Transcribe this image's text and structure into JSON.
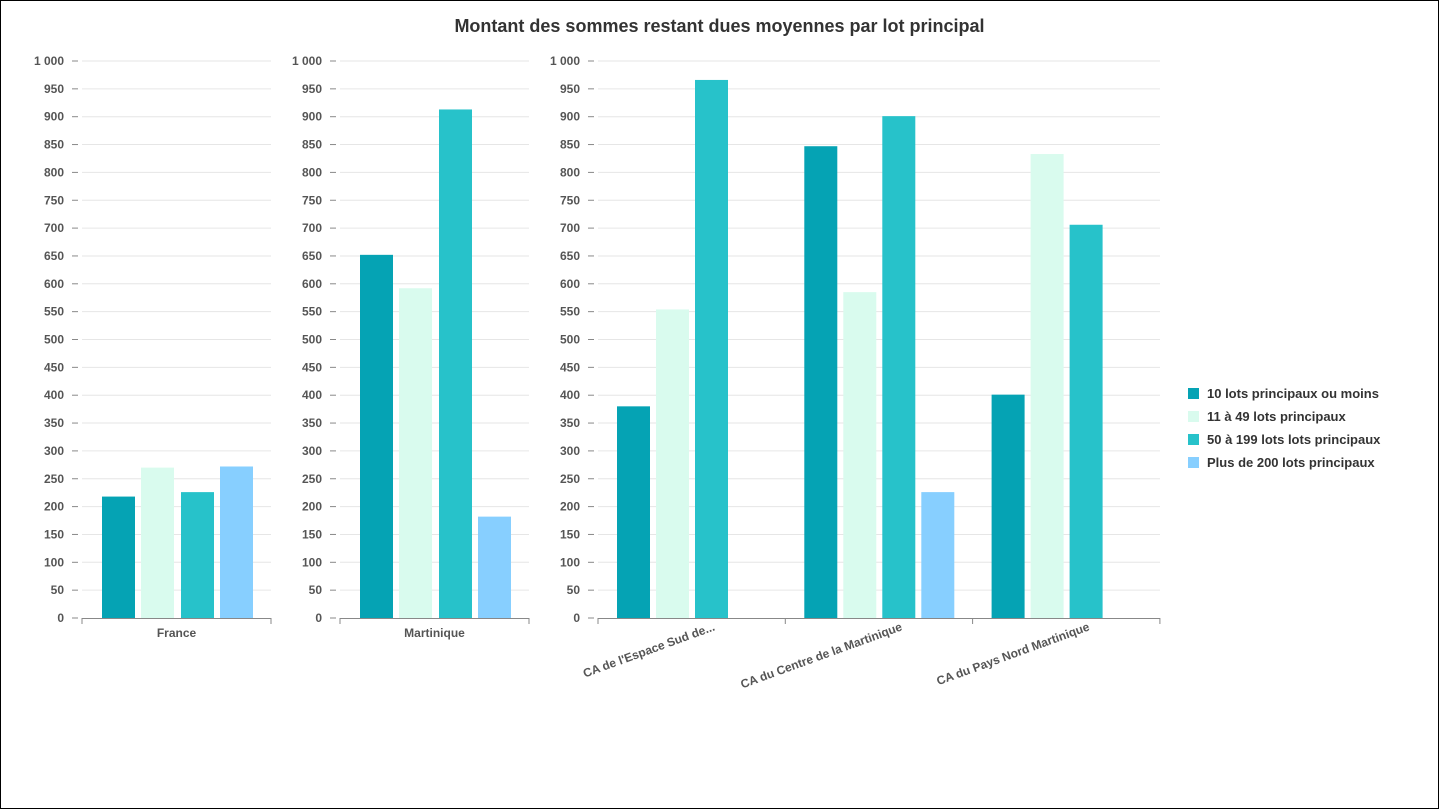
{
  "chart_data": {
    "type": "bar",
    "title": "Montant des sommes restant dues moyennes par lot principal",
    "xlabel": "",
    "ylabel": "",
    "ylim": [
      0,
      1000
    ],
    "y_ticks": [
      "0",
      "50",
      "100",
      "150",
      "200",
      "250",
      "300",
      "350",
      "400",
      "450",
      "500",
      "550",
      "600",
      "650",
      "700",
      "750",
      "800",
      "850",
      "900",
      "950",
      "1 000"
    ],
    "grid": true,
    "legend_position": "right",
    "series": [
      {
        "name": "10 lots  principaux ou moins",
        "color": "#05A3B4"
      },
      {
        "name": "11 à 49 lots  principaux",
        "color": "#D9FBEE"
      },
      {
        "name": "50 à 199 lots  lots principaux",
        "color": "#27C2CA"
      },
      {
        "name": "Plus de 200 lots  principaux",
        "color": "#87CFFF"
      }
    ],
    "panels": [
      {
        "categories": [
          "France"
        ],
        "values": [
          [
            218
          ],
          [
            270
          ],
          [
            226
          ],
          [
            272
          ]
        ]
      },
      {
        "categories": [
          "Martinique"
        ],
        "values": [
          [
            652
          ],
          [
            592
          ],
          [
            913
          ],
          [
            182
          ]
        ]
      },
      {
        "categories": [
          "CA de l'Espace Sud de...",
          "CA du Centre de la Martinique",
          "CA du Pays Nord Martinique"
        ],
        "values": [
          [
            380,
            847,
            401
          ],
          [
            554,
            585,
            833
          ],
          [
            966,
            901,
            706
          ],
          [
            null,
            226,
            null
          ]
        ]
      }
    ]
  }
}
